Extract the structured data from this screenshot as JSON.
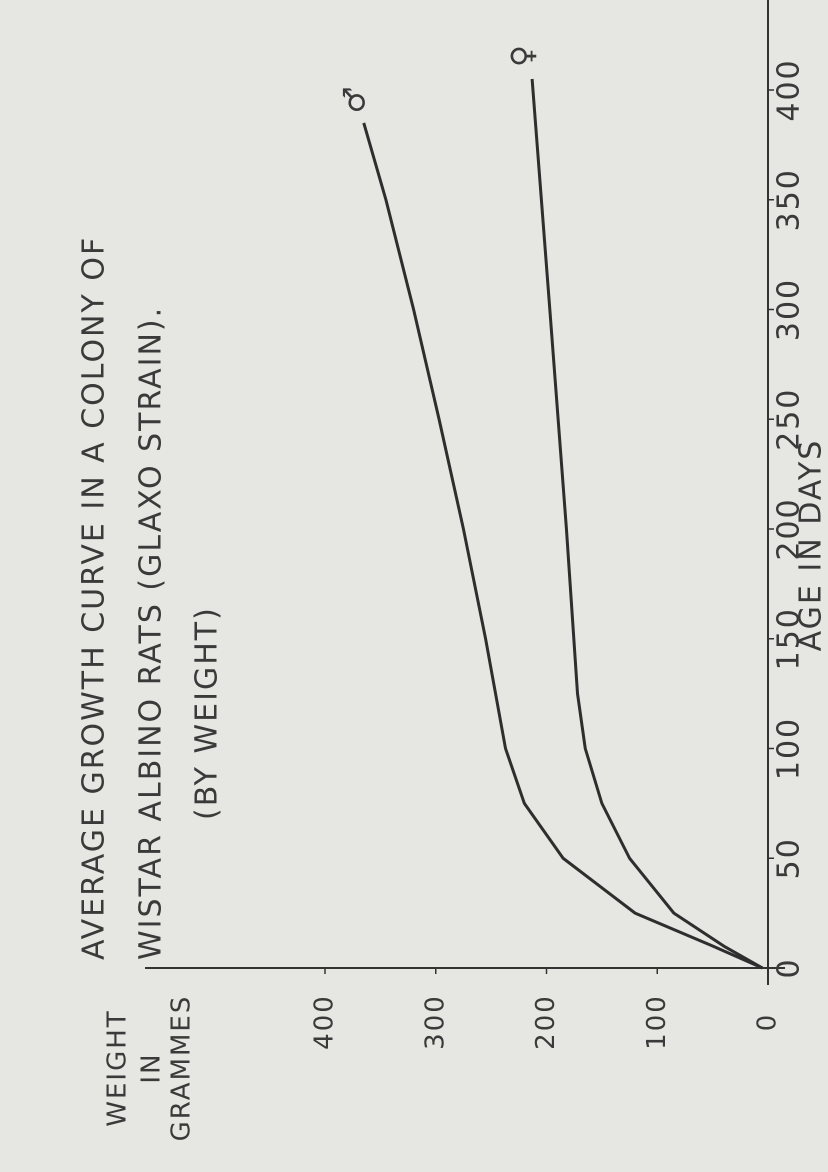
{
  "chart_data": {
    "type": "line",
    "title": [
      "AVERAGE GROWTH CURVE IN A COLONY OF",
      "WISTAR ALBINO RATS (GLAXO STRAIN).",
      "(BY WEIGHT)"
    ],
    "x_label": "AGE IN DAYS",
    "y_label": [
      "WEIGHT",
      "IN",
      "GRAMMES"
    ],
    "xlim": [
      0,
      400
    ],
    "xticks": [
      0,
      50,
      100,
      150,
      200,
      250,
      300,
      350,
      400
    ],
    "ylim": [
      0,
      400
    ],
    "yticks": [
      0,
      100,
      200,
      300,
      400
    ],
    "series": [
      {
        "name": "♂",
        "color": "#2e2e2e",
        "x": [
          0,
          10,
          25,
          50,
          75,
          100,
          150,
          200,
          250,
          300,
          350,
          385
        ],
        "values": [
          5,
          50,
          120,
          185,
          220,
          237,
          255,
          275,
          297,
          320,
          345,
          365
        ]
      },
      {
        "name": "♀",
        "color": "#2e2e2e",
        "x": [
          0,
          10,
          25,
          50,
          75,
          100,
          125,
          200,
          300,
          405
        ],
        "values": [
          5,
          40,
          85,
          125,
          150,
          165,
          172,
          182,
          197,
          213
        ]
      }
    ]
  }
}
